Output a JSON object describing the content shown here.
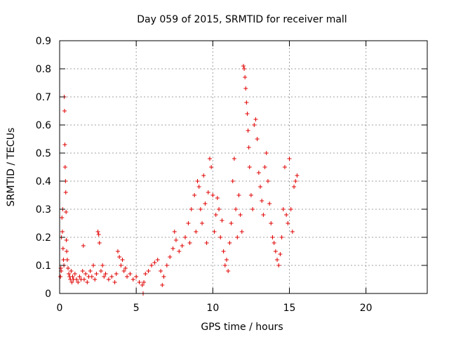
{
  "chart_data": {
    "type": "scatter",
    "title": "Day 059 of 2015, SRMTID for receiver mall",
    "xlabel": "GPS time / hours",
    "ylabel": "SRMTID / TECUs",
    "xlim": [
      0,
      24
    ],
    "ylim": [
      0,
      0.9
    ],
    "xticks": [
      0,
      5,
      10,
      15,
      20
    ],
    "xtick_labels": [
      "0",
      "5",
      "10",
      "15",
      "20"
    ],
    "yticks": [
      0,
      0.1,
      0.2,
      0.3,
      0.4,
      0.5,
      0.6,
      0.7,
      0.8,
      0.9
    ],
    "ytick_labels": [
      "0",
      "0.1",
      "0.2",
      "0.3",
      "0.4",
      "0.5",
      "0.6",
      "0.7",
      "0.8",
      "0.9"
    ],
    "grid": true,
    "marker": "+",
    "color": "#e00000",
    "series": [
      {
        "name": "SRMTID",
        "points": [
          [
            0.05,
            0.06
          ],
          [
            0.08,
            0.09
          ],
          [
            0.1,
            0.08
          ],
          [
            0.12,
            0.2
          ],
          [
            0.15,
            0.27
          ],
          [
            0.18,
            0.22
          ],
          [
            0.2,
            0.3
          ],
          [
            0.22,
            0.16
          ],
          [
            0.25,
            0.12
          ],
          [
            0.28,
            0.1
          ],
          [
            0.3,
            0.7
          ],
          [
            0.32,
            0.65
          ],
          [
            0.34,
            0.53
          ],
          [
            0.36,
            0.45
          ],
          [
            0.38,
            0.4
          ],
          [
            0.4,
            0.36
          ],
          [
            0.42,
            0.29
          ],
          [
            0.44,
            0.19
          ],
          [
            0.46,
            0.15
          ],
          [
            0.5,
            0.12
          ],
          [
            0.55,
            0.09
          ],
          [
            0.6,
            0.07
          ],
          [
            0.65,
            0.06
          ],
          [
            0.7,
            0.05
          ],
          [
            0.75,
            0.08
          ],
          [
            0.8,
            0.04
          ],
          [
            0.85,
            0.06
          ],
          [
            0.9,
            0.05
          ],
          [
            1.0,
            0.07
          ],
          [
            1.1,
            0.05
          ],
          [
            1.2,
            0.04
          ],
          [
            1.3,
            0.06
          ],
          [
            1.4,
            0.05
          ],
          [
            1.5,
            0.08
          ],
          [
            1.55,
            0.17
          ],
          [
            1.6,
            0.05
          ],
          [
            1.7,
            0.07
          ],
          [
            1.8,
            0.04
          ],
          [
            1.9,
            0.06
          ],
          [
            2.0,
            0.08
          ],
          [
            2.1,
            0.06
          ],
          [
            2.2,
            0.1
          ],
          [
            2.3,
            0.05
          ],
          [
            2.4,
            0.07
          ],
          [
            2.5,
            0.22
          ],
          [
            2.55,
            0.21
          ],
          [
            2.6,
            0.18
          ],
          [
            2.7,
            0.08
          ],
          [
            2.8,
            0.1
          ],
          [
            2.9,
            0.06
          ],
          [
            3.0,
            0.07
          ],
          [
            3.2,
            0.05
          ],
          [
            3.4,
            0.06
          ],
          [
            3.6,
            0.04
          ],
          [
            3.7,
            0.07
          ],
          [
            3.8,
            0.15
          ],
          [
            3.9,
            0.13
          ],
          [
            4.0,
            0.1
          ],
          [
            4.1,
            0.12
          ],
          [
            4.2,
            0.08
          ],
          [
            4.3,
            0.09
          ],
          [
            4.4,
            0.06
          ],
          [
            4.6,
            0.07
          ],
          [
            4.8,
            0.05
          ],
          [
            5.0,
            0.06
          ],
          [
            5.2,
            0.04
          ],
          [
            5.4,
            0.03
          ],
          [
            5.45,
            0.0
          ],
          [
            5.5,
            0.04
          ],
          [
            5.6,
            0.07
          ],
          [
            5.8,
            0.08
          ],
          [
            6.0,
            0.1
          ],
          [
            6.2,
            0.11
          ],
          [
            6.4,
            0.12
          ],
          [
            6.6,
            0.08
          ],
          [
            6.7,
            0.03
          ],
          [
            6.8,
            0.06
          ],
          [
            7.0,
            0.1
          ],
          [
            7.2,
            0.13
          ],
          [
            7.4,
            0.16
          ],
          [
            7.5,
            0.22
          ],
          [
            7.6,
            0.19
          ],
          [
            7.8,
            0.15
          ],
          [
            8.0,
            0.17
          ],
          [
            8.2,
            0.2
          ],
          [
            8.4,
            0.25
          ],
          [
            8.5,
            0.18
          ],
          [
            8.6,
            0.3
          ],
          [
            8.8,
            0.35
          ],
          [
            8.9,
            0.22
          ],
          [
            9.0,
            0.4
          ],
          [
            9.1,
            0.38
          ],
          [
            9.2,
            0.3
          ],
          [
            9.3,
            0.25
          ],
          [
            9.4,
            0.42
          ],
          [
            9.5,
            0.32
          ],
          [
            9.6,
            0.18
          ],
          [
            9.7,
            0.36
          ],
          [
            9.8,
            0.48
          ],
          [
            9.9,
            0.45
          ],
          [
            10.0,
            0.35
          ],
          [
            10.1,
            0.22
          ],
          [
            10.2,
            0.28
          ],
          [
            10.3,
            0.34
          ],
          [
            10.4,
            0.3
          ],
          [
            10.5,
            0.2
          ],
          [
            10.6,
            0.26
          ],
          [
            10.7,
            0.15
          ],
          [
            10.8,
            0.1
          ],
          [
            10.9,
            0.12
          ],
          [
            11.0,
            0.08
          ],
          [
            11.1,
            0.18
          ],
          [
            11.2,
            0.25
          ],
          [
            11.3,
            0.4
          ],
          [
            11.4,
            0.48
          ],
          [
            11.5,
            0.3
          ],
          [
            11.6,
            0.2
          ],
          [
            11.7,
            0.35
          ],
          [
            11.8,
            0.28
          ],
          [
            11.9,
            0.22
          ],
          [
            12.0,
            0.81
          ],
          [
            12.05,
            0.8
          ],
          [
            12.1,
            0.77
          ],
          [
            12.15,
            0.73
          ],
          [
            12.2,
            0.68
          ],
          [
            12.25,
            0.64
          ],
          [
            12.3,
            0.58
          ],
          [
            12.35,
            0.52
          ],
          [
            12.4,
            0.45
          ],
          [
            12.5,
            0.35
          ],
          [
            12.6,
            0.3
          ],
          [
            12.7,
            0.6
          ],
          [
            12.8,
            0.62
          ],
          [
            12.9,
            0.55
          ],
          [
            13.0,
            0.43
          ],
          [
            13.1,
            0.38
          ],
          [
            13.2,
            0.33
          ],
          [
            13.3,
            0.28
          ],
          [
            13.4,
            0.45
          ],
          [
            13.5,
            0.5
          ],
          [
            13.6,
            0.4
          ],
          [
            13.7,
            0.32
          ],
          [
            13.8,
            0.25
          ],
          [
            13.9,
            0.2
          ],
          [
            14.0,
            0.18
          ],
          [
            14.1,
            0.15
          ],
          [
            14.2,
            0.12
          ],
          [
            14.3,
            0.1
          ],
          [
            14.4,
            0.14
          ],
          [
            14.5,
            0.2
          ],
          [
            14.6,
            0.3
          ],
          [
            14.7,
            0.45
          ],
          [
            14.8,
            0.28
          ],
          [
            14.9,
            0.25
          ],
          [
            15.0,
            0.48
          ],
          [
            15.1,
            0.3
          ],
          [
            15.2,
            0.22
          ],
          [
            15.3,
            0.38
          ],
          [
            15.4,
            0.4
          ],
          [
            15.5,
            0.42
          ]
        ]
      }
    ]
  }
}
